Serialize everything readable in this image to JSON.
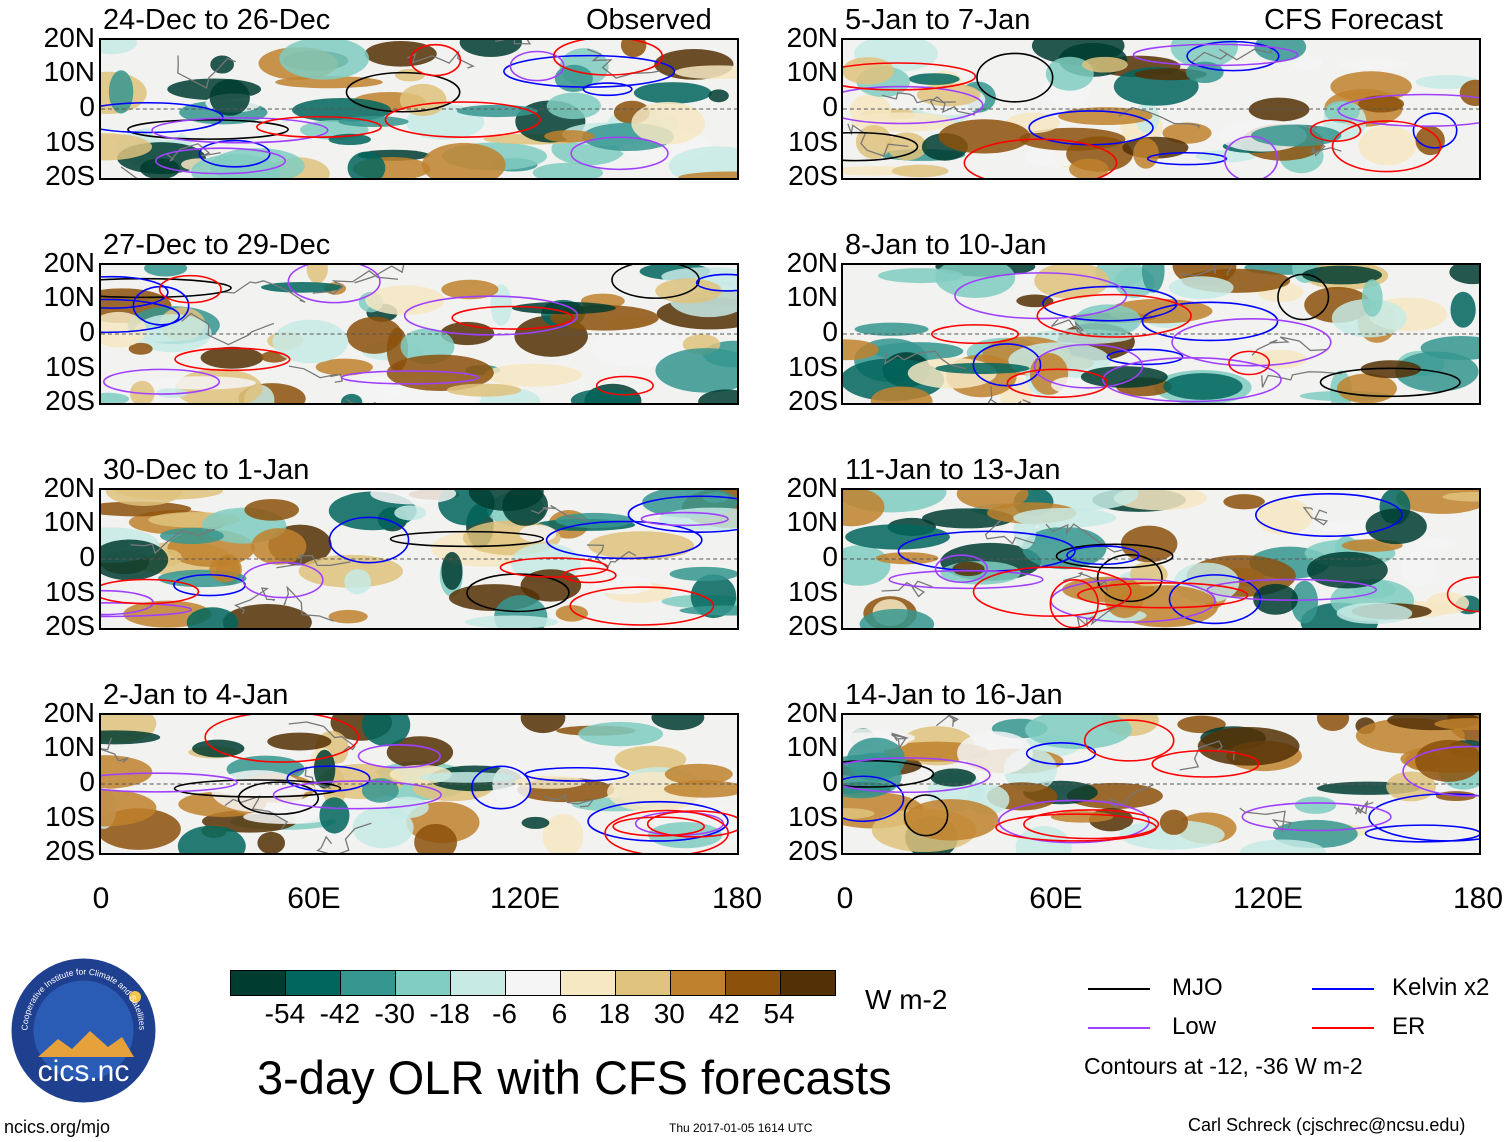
{
  "left_header": "Observed",
  "right_header": "CFS Forecast",
  "observed_panels": [
    {
      "label": "24-Dec to 26-Dec"
    },
    {
      "label": "27-Dec to 29-Dec"
    },
    {
      "label": "30-Dec to 1-Jan"
    },
    {
      "label": "2-Jan to 4-Jan"
    }
  ],
  "forecast_panels": [
    {
      "label": "5-Jan to 7-Jan"
    },
    {
      "label": "8-Jan to 10-Jan"
    },
    {
      "label": "11-Jan to 13-Jan"
    },
    {
      "label": "14-Jan to 16-Jan"
    }
  ],
  "lat_labels": [
    "20N",
    "10N",
    "0",
    "10S",
    "20S"
  ],
  "lon_labels": [
    "0",
    "60E",
    "120E",
    "180"
  ],
  "colorbar": {
    "colors": [
      "#003c30",
      "#01665e",
      "#35978f",
      "#80cdc1",
      "#c7eae5",
      "#f5f5f5",
      "#f6e8c3",
      "#dfc27d",
      "#bf812d",
      "#8c510a",
      "#543005"
    ],
    "labels": [
      "-54",
      "-42",
      "-30",
      "-18",
      "-6",
      "6",
      "18",
      "30",
      "42",
      "54"
    ],
    "units": "W m-2"
  },
  "legend": {
    "items": [
      {
        "name": "MJO",
        "color": "#000000"
      },
      {
        "name": "Kelvin x2",
        "color": "#0000ff"
      },
      {
        "name": "Low",
        "color": "#a040ff"
      },
      {
        "name": "ER",
        "color": "#ff0000"
      }
    ],
    "note": "Contours at -12, -36 W m-2"
  },
  "logo_text": "cics.nc",
  "logo_ring_text": "Cooperative Institute for Climate and Satellites",
  "main_title": "3-day OLR with CFS forecasts",
  "footer": {
    "left": "ncics.org/mjo",
    "center": "Thu 2017-01-05 1614 UTC",
    "right": "Carl Schreck (cjschrec@ncsu.edu)"
  }
}
